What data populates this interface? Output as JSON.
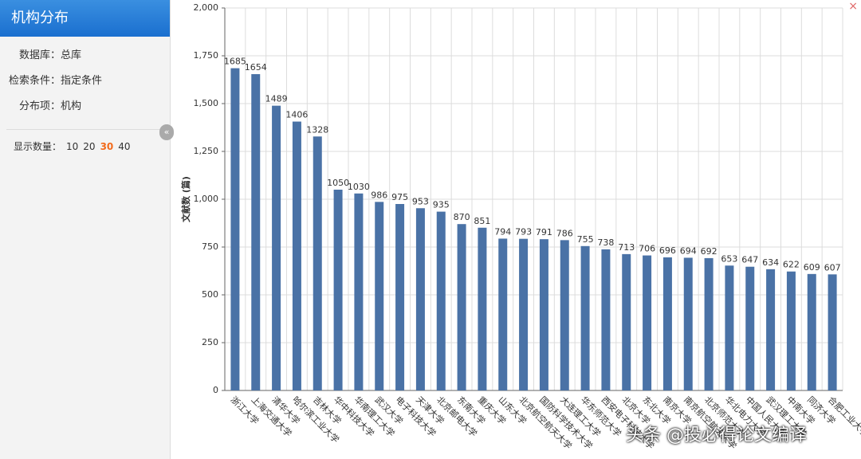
{
  "sidebar": {
    "title": "机构分布",
    "fields": [
      {
        "label": "数据库：",
        "value": "总库"
      },
      {
        "label": "检索条件：",
        "value": "指定条件"
      },
      {
        "label": "分布项：",
        "value": "机构"
      }
    ],
    "display_count": {
      "label": "显示数量：",
      "options": [
        10,
        20,
        30,
        40
      ],
      "selected": 30
    }
  },
  "watermark": "头条 @投必得论文编译",
  "chart_data": {
    "type": "bar",
    "y_label": "文献数 (篇)",
    "categories": [
      "浙江大学",
      "上海交通大学",
      "清华大学",
      "哈尔滨工业大学",
      "吉林大学",
      "华中科技大学",
      "华南理工大学",
      "武汉大学",
      "电子科技大学",
      "天津大学",
      "北京邮电大学",
      "东南大学",
      "重庆大学",
      "山东大学",
      "北京航空航天大学",
      "国防科学技术大学",
      "大连理工大学",
      "华东师范大学",
      "西安电子科技大学",
      "北京大学",
      "东北大学",
      "南京大学",
      "南京航空航天大学",
      "北京师范大学",
      "华北电力大学",
      "中国人民大学",
      "武汉理工大学",
      "中南大学",
      "同济大学",
      "合肥工业大学"
    ],
    "values": [
      1685,
      1654,
      1489,
      1406,
      1328,
      1050,
      1030,
      986,
      975,
      953,
      935,
      870,
      851,
      794,
      793,
      791,
      786,
      755,
      738,
      713,
      706,
      696,
      694,
      692,
      653,
      647,
      634,
      622,
      609,
      607
    ],
    "color": "#4a72a6",
    "ylim": [
      0,
      2000
    ],
    "yticks": [
      0,
      250,
      500,
      750,
      {
        "value": 1000,
        "label": "1,000"
      },
      {
        "value": 1250,
        "label": "1,250"
      },
      {
        "value": 1500,
        "label": "1,500"
      },
      {
        "value": 1750,
        "label": "1,750"
      },
      {
        "value": 2000,
        "label": "2,000"
      }
    ],
    "grid": true
  }
}
